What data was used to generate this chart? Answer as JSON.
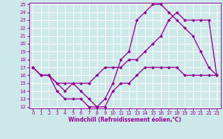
{
  "xlabel": "Windchill (Refroidissement éolien,°C)",
  "x": [
    0,
    1,
    2,
    3,
    4,
    5,
    6,
    7,
    8,
    9,
    10,
    11,
    12,
    13,
    14,
    15,
    16,
    17,
    18,
    19,
    20,
    21,
    22,
    23
  ],
  "line1": [
    17,
    16,
    16,
    15,
    14,
    15,
    14,
    13,
    12,
    12,
    14,
    15,
    15,
    16,
    17,
    17,
    17,
    17,
    17,
    16,
    16,
    16,
    16,
    16
  ],
  "line2": [
    17,
    16,
    16,
    14,
    13,
    13,
    13,
    12,
    12,
    13,
    15,
    18,
    19,
    23,
    24,
    25,
    25,
    24,
    23,
    22,
    21,
    19,
    17,
    16
  ],
  "line3": [
    17,
    16,
    16,
    15,
    15,
    15,
    15,
    15,
    16,
    17,
    17,
    17,
    18,
    18,
    19,
    20,
    21,
    23,
    24,
    23,
    23,
    23,
    23,
    16
  ],
  "ylim": [
    12,
    25
  ],
  "xlim": [
    -0.5,
    23.5
  ],
  "yticks": [
    12,
    13,
    14,
    15,
    16,
    17,
    18,
    19,
    20,
    21,
    22,
    23,
    24,
    25
  ],
  "xticks": [
    0,
    1,
    2,
    3,
    4,
    5,
    6,
    7,
    8,
    9,
    10,
    11,
    12,
    13,
    14,
    15,
    16,
    17,
    18,
    19,
    20,
    21,
    22,
    23
  ],
  "line_color": "#990099",
  "bg_color": "#cce8e8",
  "grid_color": "#ffffff",
  "marker": "D",
  "markersize": 2,
  "linewidth": 1.0,
  "xlabel_fontsize": 5.5,
  "tick_fontsize": 5.0
}
